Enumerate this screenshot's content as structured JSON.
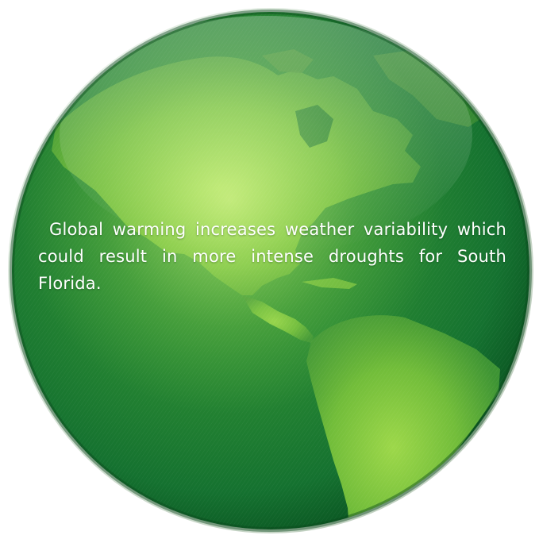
{
  "caption": {
    "text": "Global warming increases weather variability which could result in more intense droughts for South Florida."
  },
  "icon": "green-earth-globe-icon",
  "colors": {
    "ocean_dark": "#126b2c",
    "ocean_mid": "#2a8a32",
    "land_light": "#8ccf3a",
    "land_mid": "#5fae35",
    "highlight": "#d9f7a8",
    "rim": "#0c4a1f"
  }
}
